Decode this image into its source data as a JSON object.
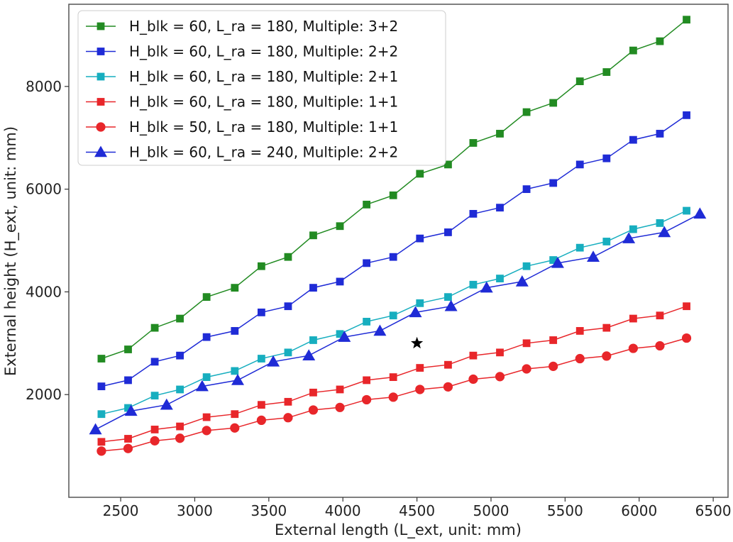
{
  "chart_data": {
    "type": "line",
    "title": "",
    "xlabel": "External length (L_ext, unit: mm)",
    "ylabel": "External height (H_ext, unit: mm)",
    "xlim": [
      2150,
      6600
    ],
    "ylim": [
      0,
      9600
    ],
    "xticks": [
      2500,
      3000,
      3500,
      4000,
      4500,
      5000,
      5500,
      6000,
      6500
    ],
    "yticks": [
      2000,
      4000,
      6000,
      8000
    ],
    "grid": false,
    "legend_position": "top-left",
    "series": [
      {
        "name": "H_blk = 60, L_ra = 180, Multiple: 3+2",
        "color": "#228b22",
        "marker": "square",
        "x": [
          2370,
          2550,
          2730,
          2900,
          3080,
          3270,
          3450,
          3630,
          3800,
          3980,
          4160,
          4340,
          4520,
          4710,
          4880,
          5060,
          5240,
          5420,
          5600,
          5780,
          5960,
          6140,
          6320
        ],
        "y": [
          2700,
          2880,
          3300,
          3480,
          3900,
          4080,
          4500,
          4680,
          5100,
          5280,
          5700,
          5880,
          6300,
          6480,
          6900,
          7080,
          7500,
          7680,
          8100,
          8280,
          8700,
          8880,
          9300
        ]
      },
      {
        "name": "H_blk = 60, L_ra = 180, Multiple: 2+2",
        "color": "#1f2bd6",
        "marker": "square",
        "x": [
          2370,
          2550,
          2730,
          2900,
          3080,
          3270,
          3450,
          3630,
          3800,
          3980,
          4160,
          4340,
          4520,
          4710,
          4880,
          5060,
          5240,
          5420,
          5600,
          5780,
          5960,
          6140,
          6320
        ],
        "y": [
          2160,
          2280,
          2640,
          2760,
          3120,
          3240,
          3600,
          3720,
          4080,
          4200,
          4560,
          4680,
          5040,
          5160,
          5520,
          5640,
          6000,
          6120,
          6480,
          6600,
          6960,
          7080,
          7440
        ]
      },
      {
        "name": "H_blk = 60, L_ra = 180, Multiple: 2+1",
        "color": "#17aebf",
        "marker": "square",
        "x": [
          2370,
          2550,
          2730,
          2900,
          3080,
          3270,
          3450,
          3630,
          3800,
          3980,
          4160,
          4340,
          4520,
          4710,
          4880,
          5060,
          5240,
          5420,
          5600,
          5780,
          5960,
          6140,
          6320
        ],
        "y": [
          1620,
          1740,
          1980,
          2100,
          2340,
          2460,
          2700,
          2820,
          3060,
          3180,
          3420,
          3540,
          3780,
          3900,
          4140,
          4260,
          4500,
          4620,
          4860,
          4980,
          5220,
          5340,
          5580
        ]
      },
      {
        "name": "H_blk = 60, L_ra = 180, Multiple: 1+1",
        "color": "#e8262a",
        "marker": "square",
        "x": [
          2370,
          2550,
          2730,
          2900,
          3080,
          3270,
          3450,
          3630,
          3800,
          3980,
          4160,
          4340,
          4520,
          4710,
          4880,
          5060,
          5240,
          5420,
          5600,
          5780,
          5960,
          6140,
          6320
        ],
        "y": [
          1080,
          1140,
          1320,
          1380,
          1560,
          1620,
          1800,
          1860,
          2040,
          2100,
          2280,
          2340,
          2520,
          2580,
          2760,
          2820,
          3000,
          3060,
          3240,
          3300,
          3480,
          3540,
          3720
        ]
      },
      {
        "name": "H_blk = 50, L_ra = 180, Multiple: 1+1",
        "color": "#e8262a",
        "marker": "circle",
        "x": [
          2370,
          2550,
          2730,
          2900,
          3080,
          3270,
          3450,
          3630,
          3800,
          3980,
          4160,
          4340,
          4520,
          4710,
          4880,
          5060,
          5240,
          5420,
          5600,
          5780,
          5960,
          6140,
          6320
        ],
        "y": [
          900,
          950,
          1100,
          1150,
          1300,
          1350,
          1500,
          1550,
          1700,
          1750,
          1900,
          1950,
          2100,
          2150,
          2300,
          2350,
          2500,
          2550,
          2700,
          2750,
          2900,
          2950,
          3100
        ]
      },
      {
        "name": "H_blk = 60, L_ra = 240, Multiple: 2+2",
        "color": "#1f2bd6",
        "marker": "triangle",
        "x": [
          2330,
          2570,
          2810,
          3050,
          3290,
          3530,
          3770,
          4010,
          4250,
          4490,
          4730,
          4970,
          5210,
          5450,
          5690,
          5930,
          6170,
          6410
        ],
        "y": [
          1320,
          1680,
          1800,
          2160,
          2280,
          2640,
          2760,
          3120,
          3240,
          3600,
          3720,
          4080,
          4200,
          4560,
          4680,
          5040,
          5160,
          5520
        ]
      }
    ],
    "annotations": [
      {
        "type": "star-marker",
        "x": 4500,
        "y": 3000,
        "color": "#000000"
      }
    ]
  }
}
